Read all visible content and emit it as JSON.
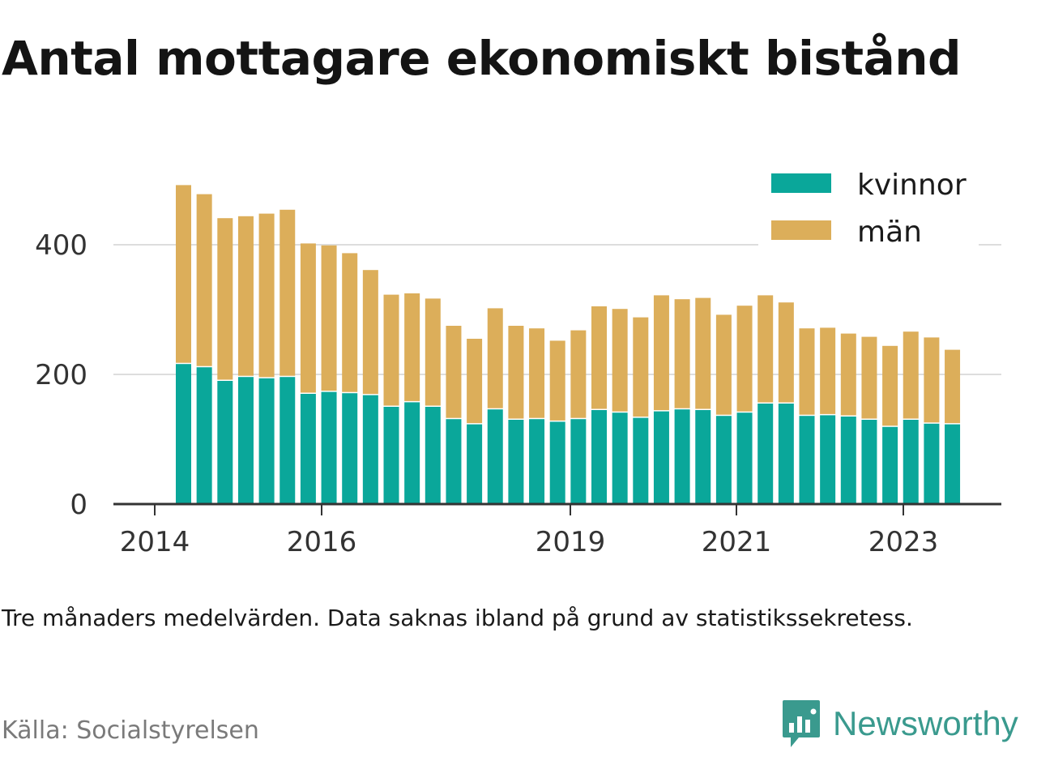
{
  "title": "Antal mottagare ekonomiskt bistånd",
  "note": "Tre månaders medelvärden. Data saknas ibland på grund av statistikssekretess.",
  "source": "Källa: Socialstyrelsen",
  "brand": "Newsworthy",
  "colors": {
    "kvinnor": "#0aa79a",
    "man": "#dcae5a",
    "grid": "#dddddd",
    "axis": "#333333",
    "brand": "#3a9a8e"
  },
  "chart_data": {
    "type": "bar",
    "stacked": true,
    "x_tick_labels": [
      "2014",
      "2016",
      "2019",
      "2021",
      "2023"
    ],
    "y_ticks": [
      0,
      200,
      400
    ],
    "ylim": [
      0,
      500
    ],
    "grid": true,
    "legend_position": "top-right",
    "series": [
      {
        "name": "kvinnor",
        "values": [
          216,
          211,
          190,
          196,
          194,
          196,
          170,
          173,
          171,
          168,
          150,
          157,
          150,
          131,
          123,
          146,
          130,
          131,
          127,
          131,
          145,
          141,
          133,
          143,
          146,
          145,
          136,
          141,
          155,
          155,
          136,
          137,
          135,
          130,
          119,
          130,
          124,
          123
        ]
      },
      {
        "name": "män",
        "values": [
          276,
          267,
          251,
          248,
          254,
          258,
          232,
          226,
          216,
          193,
          173,
          168,
          167,
          144,
          132,
          156,
          145,
          140,
          125,
          137,
          160,
          160,
          155,
          179,
          170,
          173,
          156,
          165,
          167,
          156,
          135,
          135,
          128,
          128,
          125,
          136,
          133,
          115
        ]
      }
    ]
  }
}
